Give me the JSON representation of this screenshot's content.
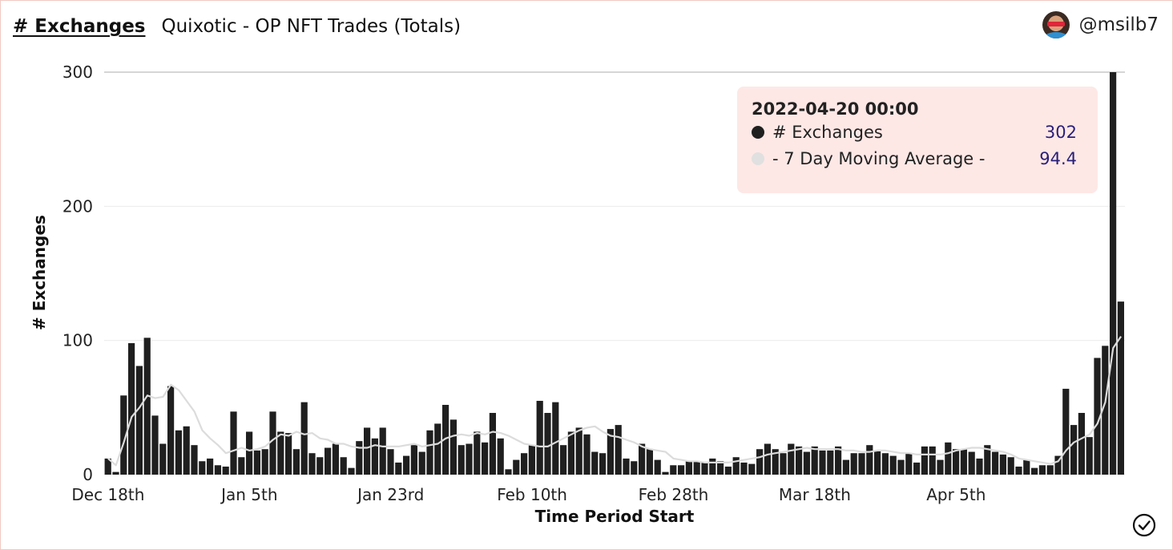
{
  "header": {
    "chart_link": "# Exchanges",
    "query_title": "Quixotic - OP NFT Trades (Totals)",
    "author": "@msilb7"
  },
  "tooltip": {
    "date": "2022-04-20 00:00",
    "rows": [
      {
        "label": "# Exchanges",
        "value": "302",
        "color": "#1f1f1f"
      },
      {
        "label": "- 7 Day Moving Average -",
        "value": "94.4",
        "color": "#e0e0e0"
      }
    ]
  },
  "icons": {
    "avatar": "user-avatar",
    "status": "check-circle-icon"
  },
  "colors": {
    "bar": "#1f1f1f",
    "line": "#dcdcdc",
    "tooltip_bg": "#fde8e6",
    "value_text": "#2a1f7a"
  },
  "chart_data": {
    "type": "bar",
    "title": "",
    "xlabel": "Time Period Start",
    "ylabel": "# Exchanges",
    "ylim": [
      0,
      300
    ],
    "yticks": [
      0,
      100,
      200,
      300
    ],
    "x_start": "2021-12-18",
    "x_end": "2022-04-21",
    "xtick_labels": [
      "Dec 18th",
      "Jan 5th",
      "Jan 23rd",
      "Feb 10th",
      "Feb 28th",
      "Mar 18th",
      "Apr 5th"
    ],
    "grid": true,
    "legend": "none",
    "series": [
      {
        "name": "# Exchanges",
        "kind": "bar",
        "values": [
          12,
          2,
          59,
          98,
          81,
          102,
          44,
          23,
          66,
          33,
          36,
          22,
          10,
          12,
          7,
          6,
          47,
          13,
          32,
          18,
          19,
          47,
          32,
          31,
          19,
          54,
          16,
          13,
          20,
          23,
          13,
          5,
          25,
          35,
          27,
          35,
          19,
          9,
          14,
          22,
          17,
          33,
          38,
          52,
          41,
          22,
          23,
          32,
          24,
          46,
          27,
          4,
          11,
          16,
          22,
          55,
          46,
          54,
          22,
          32,
          35,
          30,
          17,
          16,
          34,
          37,
          12,
          10,
          23,
          19,
          11,
          2,
          7,
          7,
          10,
          10,
          9,
          12,
          10,
          6,
          13,
          9,
          8,
          19,
          23,
          19,
          16,
          23,
          21,
          17,
          21,
          18,
          18,
          21,
          11,
          16,
          16,
          22,
          18,
          16,
          14,
          11,
          16,
          9,
          21,
          21,
          11,
          24,
          19,
          19,
          17,
          12,
          22,
          17,
          15,
          13,
          6,
          11,
          5,
          7,
          7,
          14,
          64,
          37,
          46,
          28,
          87,
          96,
          302,
          129
        ]
      },
      {
        "name": "- 7 Day Moving Average -",
        "kind": "line",
        "values": [
          12,
          7,
          24,
          43,
          50,
          59,
          57,
          58,
          67,
          63,
          55,
          47,
          33,
          27,
          22,
          16,
          18,
          20,
          18,
          19,
          21,
          26,
          30,
          29,
          32,
          30,
          31,
          27,
          26,
          23,
          23,
          21,
          20,
          20,
          22,
          21,
          21,
          21,
          22,
          23,
          21,
          22,
          23,
          27,
          29,
          30,
          29,
          31,
          30,
          32,
          31,
          29,
          26,
          23,
          22,
          21,
          21,
          24,
          27,
          30,
          33,
          35,
          36,
          32,
          29,
          28,
          26,
          24,
          21,
          19,
          18,
          17,
          12,
          11,
          10,
          10,
          9,
          9,
          9,
          9,
          10,
          11,
          12,
          13,
          15,
          16,
          17,
          18,
          19,
          20,
          19,
          19,
          19,
          19,
          18,
          18,
          17,
          17,
          18,
          18,
          17,
          16,
          16,
          15,
          15,
          15,
          15,
          16,
          18,
          19,
          20,
          20,
          19,
          18,
          17,
          15,
          12,
          11,
          10,
          9,
          8,
          10,
          18,
          24,
          27,
          30,
          38,
          54,
          94.4,
          103
        ]
      }
    ]
  }
}
